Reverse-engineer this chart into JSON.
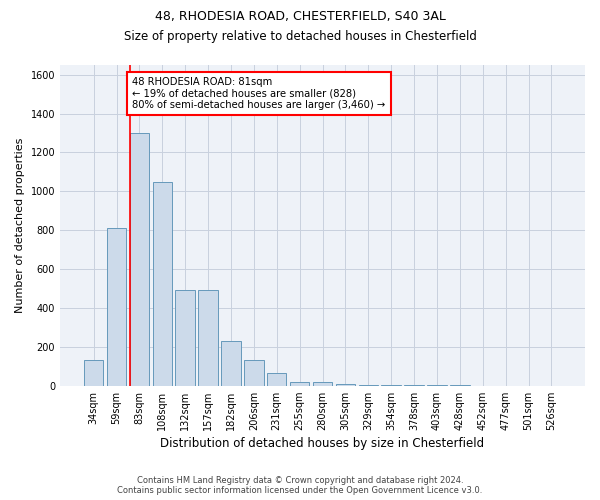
{
  "title_line1": "48, RHODESIA ROAD, CHESTERFIELD, S40 3AL",
  "title_line2": "Size of property relative to detached houses in Chesterfield",
  "xlabel": "Distribution of detached houses by size in Chesterfield",
  "ylabel": "Number of detached properties",
  "categories": [
    "34sqm",
    "59sqm",
    "83sqm",
    "108sqm",
    "132sqm",
    "157sqm",
    "182sqm",
    "206sqm",
    "231sqm",
    "255sqm",
    "280sqm",
    "305sqm",
    "329sqm",
    "354sqm",
    "378sqm",
    "403sqm",
    "428sqm",
    "452sqm",
    "477sqm",
    "501sqm",
    "526sqm"
  ],
  "values": [
    130,
    810,
    1300,
    1050,
    490,
    490,
    230,
    130,
    65,
    20,
    20,
    10,
    5,
    5,
    3,
    2,
    2,
    1,
    1,
    1,
    1
  ],
  "bar_color": "#ccdaea",
  "bar_edge_color": "#6699bb",
  "red_line_index": 2,
  "annotation_text": "48 RHODESIA ROAD: 81sqm\n← 19% of detached houses are smaller (828)\n80% of semi-detached houses are larger (3,460) →",
  "annotation_box_color": "white",
  "annotation_box_edge_color": "red",
  "ylim": [
    0,
    1650
  ],
  "yticks": [
    0,
    200,
    400,
    600,
    800,
    1000,
    1200,
    1400,
    1600
  ],
  "grid_color": "#c8d0de",
  "footer_line1": "Contains HM Land Registry data © Crown copyright and database right 2024.",
  "footer_line2": "Contains public sector information licensed under the Open Government Licence v3.0.",
  "bg_color": "#eef2f8",
  "title1_fontsize": 9,
  "title2_fontsize": 8.5,
  "ylabel_fontsize": 8,
  "xlabel_fontsize": 8.5,
  "tick_fontsize": 7,
  "annotation_fontsize": 7.2,
  "footer_fontsize": 6
}
